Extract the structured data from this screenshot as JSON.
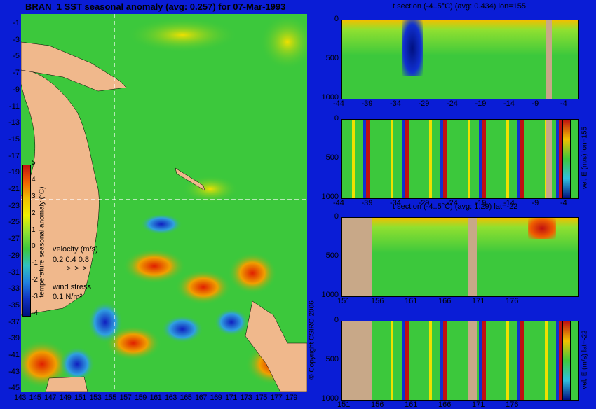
{
  "map": {
    "title": "BRAN_1 SST seasonal anomaly (avg: 0.257) for 07-Mar-1993",
    "lat_labels": [
      "-1",
      "-3",
      "-5",
      "-7",
      "-9",
      "-11",
      "-13",
      "-15",
      "-17",
      "-19",
      "-21",
      "-23",
      "-25",
      "-27",
      "-29",
      "-31",
      "-33",
      "-35",
      "-37",
      "-39",
      "-41",
      "-43",
      "-45"
    ],
    "lon_labels": [
      "143",
      "145",
      "147",
      "149",
      "151",
      "153",
      "155",
      "157",
      "159",
      "161",
      "163",
      "165",
      "167",
      "169",
      "171",
      "173",
      "175",
      "177",
      "179"
    ],
    "colorbar": {
      "label": "temperature seasonal anomaly (°C)",
      "ticks": [
        "5",
        "4",
        "3",
        "2",
        "1",
        "0",
        "-1",
        "-2",
        "-3",
        "-4"
      ]
    },
    "velocity_legend": {
      "title": "velocity (m/s)",
      "values": "0.2 0.4 0.8"
    },
    "wind_legend": {
      "title": "wind stress",
      "value": "0.1 N/m²"
    },
    "copyright": "© Copyright CSIRO 2006",
    "colors": {
      "land": "#f0b88c",
      "ocean_mid": "#3cc83c",
      "warm": "#f07800",
      "cold": "#1030d0"
    }
  },
  "panels": [
    {
      "title": "t section (-4..5°C) (avg: 0.434) lon=155",
      "x_labels": [
        "-44",
        "-39",
        "-34",
        "-29",
        "-24",
        "-19",
        "-14",
        "-9",
        "-4"
      ],
      "y_labels": [
        "0",
        "500",
        "1000"
      ]
    },
    {
      "title": "",
      "x_labels": [
        "-44",
        "-39",
        "-34",
        "-29",
        "-24",
        "-19",
        "-14",
        "-9",
        "-4"
      ],
      "y_labels": [
        "0",
        "500",
        "1000"
      ],
      "side_label": "vel. E (m/s) lon=155",
      "colorbar_ticks": [
        "0.4",
        "0.2",
        "0",
        "-0.2",
        "-0.4"
      ]
    },
    {
      "title": "t section (-4..5°C) (avg: 1.29) lat=-22",
      "x_labels": [
        "151",
        "156",
        "161",
        "166",
        "171",
        "176"
      ],
      "y_labels": [
        "0",
        "500",
        "1000"
      ]
    },
    {
      "title": "",
      "x_labels": [
        "151",
        "156",
        "161",
        "166",
        "171",
        "176"
      ],
      "y_labels": [
        "0",
        "500",
        "1000"
      ],
      "side_label": "vel. E (m/s) lat=-22",
      "colorbar_ticks": [
        "0.4",
        "0.2",
        "0",
        "-0.2",
        "-0.4"
      ]
    }
  ]
}
